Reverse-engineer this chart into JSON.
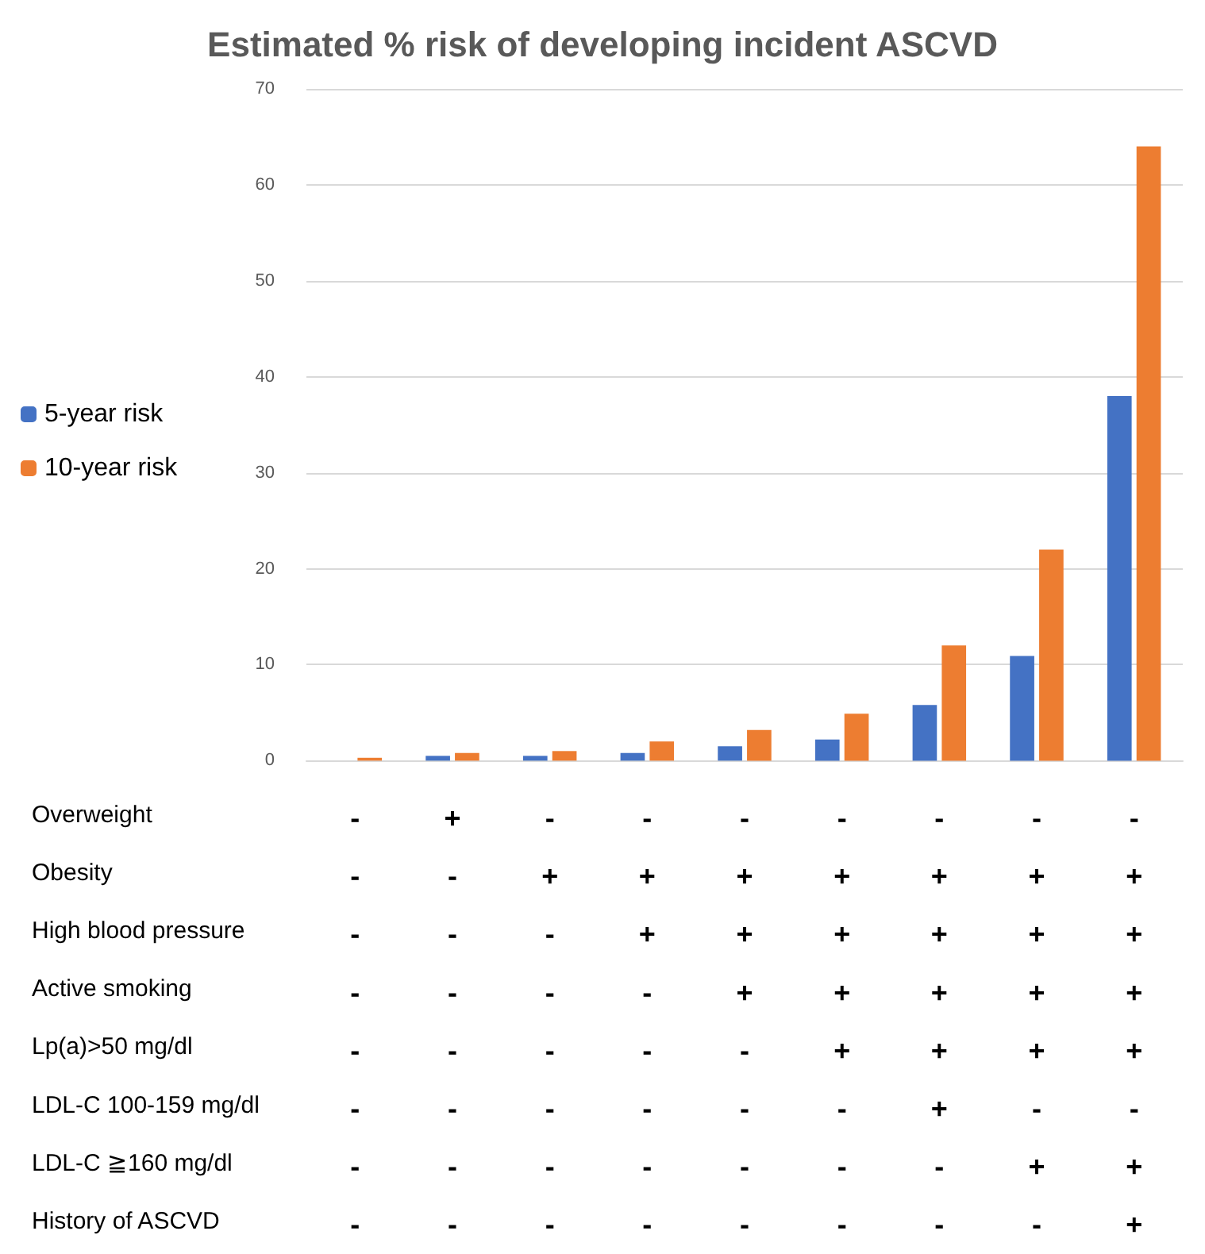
{
  "chart_data": {
    "type": "bar",
    "title": "Estimated % risk of developing incident ASCVD",
    "categories": [
      "-\n-\n-\n-\n-\n-\n-\n-",
      "+\n-\n-\n-\n-\n-\n-\n-",
      "-\n+\n-\n-\n-\n-\n-\n-",
      "-\n+\n+\n-\n-\n-\n-\n-",
      "-\n+\n+\n+\n-\n-\n-\n-",
      "-\n+\n+\n+\n+\n-\n-\n-",
      "-\n+\n+\n+\n+\n+\n-\n-",
      "-\n+\n+\n+\n+\n-\n+\n-",
      "-\n+\n+\n+\n+\n-\n+\n+"
    ],
    "series": [
      {
        "name": "5-year risk",
        "color": "#4472c4",
        "values": [
          0,
          0.5,
          0.5,
          0.8,
          1.5,
          2.2,
          5.8,
          10.9,
          38
        ]
      },
      {
        "name": "10-year risk",
        "color": "#ed7d31",
        "values": [
          0.3,
          0.8,
          1.0,
          2.0,
          3.2,
          4.9,
          12.0,
          22,
          64
        ]
      }
    ],
    "annotations": [
      "Overweight",
      "Obesity",
      "High blood pressure",
      "Active smoking",
      "Lp(a)>50 mg/dl",
      "LDL-C 100-159 mg/dl",
      "LDL-C ≧160 mg/dl",
      "History of ASCVD"
    ],
    "ylim": [
      0,
      70
    ],
    "yticks": [
      0,
      10,
      20,
      30,
      40,
      50,
      60,
      70
    ],
    "grid": "y",
    "legend": "left"
  }
}
